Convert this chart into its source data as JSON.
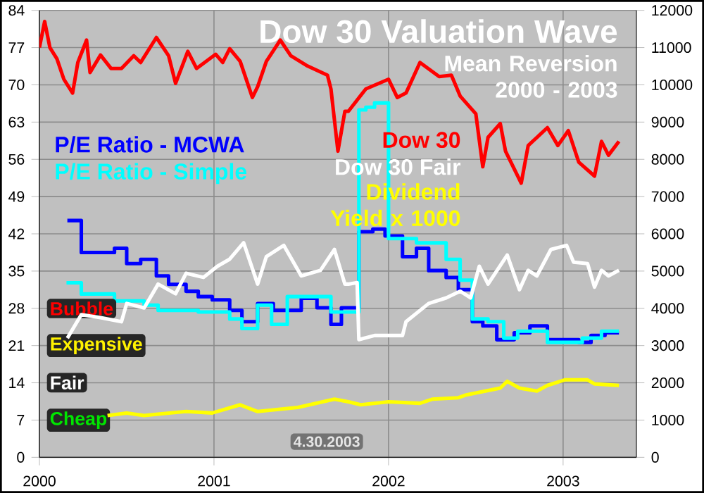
{
  "chart_data": {
    "type": "line",
    "title": "Dow 30 Valuation Wave",
    "subtitle": "Mean Reversion 2000 - 2003",
    "xlim": [
      2000,
      2003.42
    ],
    "xticks": [
      2000,
      2001,
      2002,
      2003
    ],
    "ylim": [
      0,
      84
    ],
    "yticks": [
      0,
      7,
      14,
      21,
      28,
      35,
      42,
      49,
      56,
      63,
      70,
      77,
      84
    ],
    "y2lim": [
      0,
      12000
    ],
    "y2ticks": [
      0,
      1000,
      2000,
      3000,
      4000,
      5000,
      6000,
      7000,
      8000,
      9000,
      10000,
      11000,
      12000
    ],
    "grid": true,
    "marker": "none",
    "line_style": "solid",
    "series": [
      {
        "name": "P/E Ratio - MCWA",
        "type": "step",
        "color": "#0000ff",
        "x": [
          2000.16,
          2000.24,
          2000.43,
          2000.5,
          2000.58,
          2000.67,
          2000.74,
          2000.84,
          2000.91,
          2000.99,
          2001.09,
          2001.16,
          2001.25,
          2001.34,
          2001.5,
          2001.59,
          2001.67,
          2001.73,
          2001.83,
          2001.91,
          2001.98,
          2002.08,
          2002.16,
          2002.23,
          2002.33,
          2002.4,
          2002.48,
          2002.54,
          2002.62,
          2002.72,
          2002.81,
          2002.91,
          2003.09,
          2003.16,
          2003.24,
          2003.32
        ],
        "values": [
          44.5,
          38.5,
          39.3,
          36.4,
          37.2,
          34.1,
          32.5,
          31.2,
          30.2,
          29.6,
          27.6,
          25.5,
          28.9,
          27.6,
          29.9,
          28.1,
          25.0,
          28.1,
          42.4,
          42.9,
          41.6,
          37.7,
          39.3,
          35.1,
          33.8,
          31.5,
          25.5,
          24.7,
          22.1,
          23.4,
          24.7,
          22.1,
          21.6,
          22.9,
          23.4,
          23.4
        ]
      },
      {
        "name": "P/E Ratio - Simple",
        "type": "step",
        "color": "#00ffff",
        "x": [
          2000.155,
          2000.24,
          2000.43,
          2000.6,
          2000.68,
          2000.91,
          2001.09,
          2001.16,
          2001.25,
          2001.33,
          2001.42,
          2001.67,
          2001.83,
          2001.87,
          2001.92,
          2002.0,
          2002.16,
          2002.33,
          2002.41,
          2002.48,
          2002.57,
          2002.66,
          2002.74,
          2002.83,
          2002.91,
          2003.11,
          2003.22,
          2003.32
        ],
        "values": [
          32.8,
          30.7,
          29.4,
          28.6,
          27.6,
          27.3,
          26.0,
          24.2,
          28.6,
          25.0,
          30.2,
          27.3,
          65.3,
          65.8,
          66.6,
          41.1,
          40.3,
          37.2,
          33.3,
          26.0,
          25.5,
          22.4,
          23.7,
          23.7,
          21.6,
          22.4,
          23.7,
          23.7
        ]
      },
      {
        "name": "Dow 30",
        "axis": "y2",
        "color": "#ff0000",
        "x": [
          2000.0,
          2000.03,
          2000.06,
          2000.1,
          2000.14,
          2000.19,
          2000.22,
          2000.27,
          2000.29,
          2000.35,
          2000.41,
          2000.47,
          2000.54,
          2000.58,
          2000.67,
          2000.74,
          2000.78,
          2000.85,
          2000.9,
          2001.01,
          2001.05,
          2001.09,
          2001.15,
          2001.22,
          2001.25,
          2001.3,
          2001.38,
          2001.44,
          2001.53,
          2001.65,
          2001.67,
          2001.71,
          2001.75,
          2001.77,
          2001.87,
          2002.0,
          2002.05,
          2002.1,
          2002.18,
          2002.29,
          2002.36,
          2002.41,
          2002.5,
          2002.54,
          2002.57,
          2002.64,
          2002.67,
          2002.76,
          2002.8,
          2002.91,
          2002.97,
          2003.03,
          2003.09,
          2003.18,
          2003.22,
          2003.26,
          2003.32
        ],
        "values": [
          11000,
          11700,
          11000,
          10700,
          10150,
          9780,
          10600,
          11200,
          10330,
          10800,
          10440,
          10440,
          10780,
          10600,
          11270,
          10780,
          10040,
          10900,
          10440,
          10820,
          10600,
          10970,
          10630,
          9660,
          9950,
          10630,
          11200,
          10780,
          10520,
          10260,
          9890,
          8220,
          9290,
          9290,
          9890,
          10150,
          9660,
          9780,
          10600,
          10220,
          10260,
          9700,
          9220,
          7800,
          8590,
          8960,
          8220,
          7360,
          8370,
          8850,
          8370,
          8770,
          7920,
          7550,
          8480,
          8110,
          8480
        ]
      },
      {
        "name": "Dow 30 Fair",
        "axis": "y2",
        "color": "#ffffff",
        "x": [
          2000.16,
          2000.24,
          2000.35,
          2000.47,
          2000.5,
          2000.6,
          2000.68,
          2000.78,
          2000.84,
          2000.94,
          2001.02,
          2001.09,
          2001.17,
          2001.25,
          2001.3,
          2001.4,
          2001.5,
          2001.61,
          2001.69,
          2001.75,
          2001.77,
          2001.82,
          2001.83,
          2001.92,
          2002.0,
          2002.08,
          2002.1,
          2002.23,
          2002.33,
          2002.41,
          2002.47,
          2002.52,
          2002.57,
          2002.68,
          2002.75,
          2002.8,
          2002.85,
          2002.93,
          2003.02,
          2003.06,
          2003.14,
          2003.18,
          2003.22,
          2003.26,
          2003.32
        ],
        "values": [
          3200,
          3830,
          3750,
          3640,
          4130,
          4010,
          4650,
          4390,
          4940,
          4830,
          5130,
          5320,
          5760,
          4650,
          5390,
          5690,
          4870,
          5020,
          5580,
          4650,
          4650,
          4690,
          3160,
          3270,
          3270,
          3270,
          3640,
          4130,
          4280,
          4460,
          4280,
          5130,
          4650,
          5430,
          4500,
          5020,
          4870,
          5580,
          5690,
          5240,
          5200,
          4570,
          5020,
          4870,
          5020
        ]
      },
      {
        "name": "Dividend Yield x 1000",
        "axis": "y2",
        "color": "#ffff00",
        "x": [
          2000.39,
          2000.5,
          2000.6,
          2000.68,
          2000.84,
          2000.99,
          2001.15,
          2001.25,
          2001.48,
          2001.69,
          2001.77,
          2001.84,
          2002.0,
          2002.18,
          2002.25,
          2002.4,
          2002.44,
          2002.64,
          2002.68,
          2002.75,
          2002.85,
          2002.91,
          2003.01,
          2003.14,
          2003.18,
          2003.32
        ],
        "values": [
          1120,
          1190,
          1120,
          1160,
          1230,
          1190,
          1410,
          1230,
          1340,
          1560,
          1490,
          1410,
          1490,
          1450,
          1560,
          1600,
          1670,
          1860,
          2040,
          1860,
          1780,
          1930,
          2080,
          2080,
          1970,
          1930
        ]
      }
    ],
    "annotations": [
      "Bubble",
      "Expensive",
      "Fair",
      "Cheap",
      "4.30.2003"
    ]
  }
}
